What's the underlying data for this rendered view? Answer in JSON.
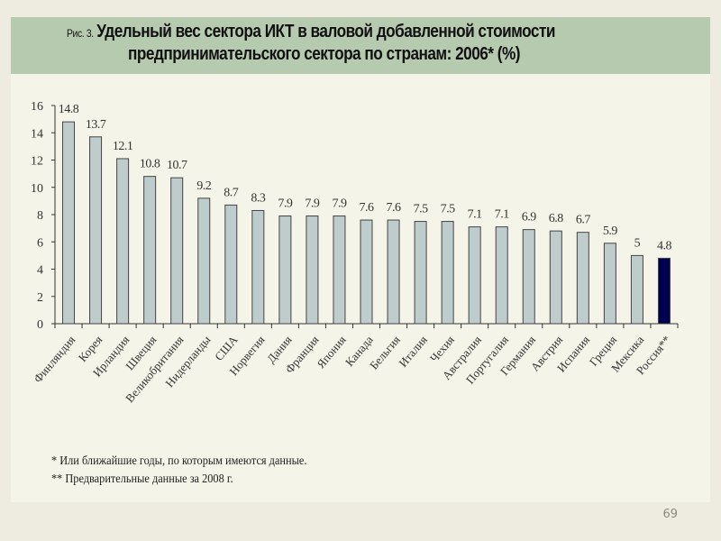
{
  "header": {
    "figure_label": "Рис. 3.",
    "title_line1": "Удельный вес сектора ИКТ в валовой добавленной стоимости",
    "title_line2": "предпринимательского сектора по странам: 2006* (%)"
  },
  "chart_data": {
    "type": "bar",
    "title": "Удельный вес сектора ИКТ в валовой добавленной стоимости предпринимательского сектора по странам: 2006* (%)",
    "xlabel": "",
    "ylabel": "",
    "ylim": [
      0,
      16
    ],
    "yticks": [
      0,
      2,
      4,
      6,
      8,
      10,
      12,
      14,
      16
    ],
    "grid": false,
    "categories": [
      "Финляндия",
      "Корея",
      "Ирландия",
      "Швеция",
      "Великобритания",
      "Нидерланды",
      "США",
      "Норвегия",
      "Дания",
      "Франция",
      "Япония",
      "Канада",
      "Бельгия",
      "Италия",
      "Чехия",
      "Австралия",
      "Португалия",
      "Германия",
      "Австрия",
      "Испания",
      "Греция",
      "Мексика",
      "Россия**"
    ],
    "values": [
      14.8,
      13.7,
      12.1,
      10.8,
      10.7,
      9.2,
      8.7,
      8.3,
      7.9,
      7.9,
      7.9,
      7.6,
      7.6,
      7.5,
      7.5,
      7.1,
      7.1,
      6.9,
      6.8,
      6.7,
      5.9,
      5,
      4.8
    ],
    "value_labels": [
      "14.8",
      "13.7",
      "12.1",
      "10.8",
      "10.7",
      "9.2",
      "8.7",
      "8.3",
      "7.9",
      "7.9",
      "7.9",
      "7.6",
      "7.6",
      "7.5",
      "7.5",
      "7.1",
      "7.1",
      "6.9",
      "6.8",
      "6.7",
      "5.9",
      "5",
      "4.8"
    ],
    "highlight_category": "Россия**",
    "colors": {
      "bar": "#bfcccc",
      "highlight": "#000050",
      "bar_border": "#444444",
      "axis": "#333333"
    }
  },
  "footnotes": [
    "* Или ближайшие годы, по которым имеются данные.",
    "** Предварительные данные за 2008 г."
  ],
  "page_number": "69"
}
